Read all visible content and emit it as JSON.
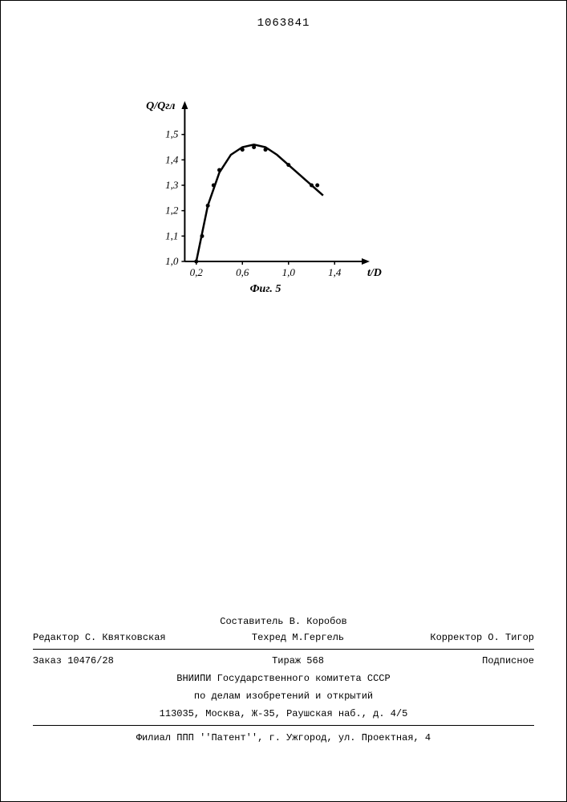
{
  "doc_number": "1063841",
  "chart": {
    "type": "scatter-line",
    "ylabel": "Q/Qгл",
    "xlabel": "t/D",
    "figure_label": "Фиг. 5",
    "yticks": [
      1.0,
      1.1,
      1.2,
      1.3,
      1.4,
      1.5
    ],
    "ytick_labels": [
      "1,0",
      "1,1",
      "1,2",
      "1,3",
      "1,4",
      "1,5"
    ],
    "xticks": [
      0.2,
      0.6,
      1.0,
      1.4
    ],
    "xtick_labels": [
      "0,2",
      "0,6",
      "1,0",
      "1,4"
    ],
    "xlim": [
      0.0,
      1.6
    ],
    "ylim": [
      1.0,
      1.6
    ],
    "points": [
      {
        "x": 0.2,
        "y": 1.0
      },
      {
        "x": 0.25,
        "y": 1.1
      },
      {
        "x": 0.3,
        "y": 1.22
      },
      {
        "x": 0.35,
        "y": 1.3
      },
      {
        "x": 0.4,
        "y": 1.36
      },
      {
        "x": 0.6,
        "y": 1.44
      },
      {
        "x": 0.7,
        "y": 1.45
      },
      {
        "x": 0.8,
        "y": 1.44
      },
      {
        "x": 1.0,
        "y": 1.38
      },
      {
        "x": 1.2,
        "y": 1.3
      },
      {
        "x": 1.25,
        "y": 1.3
      }
    ],
    "curve": [
      {
        "x": 0.2,
        "y": 1.0
      },
      {
        "x": 0.3,
        "y": 1.22
      },
      {
        "x": 0.4,
        "y": 1.35
      },
      {
        "x": 0.5,
        "y": 1.42
      },
      {
        "x": 0.6,
        "y": 1.45
      },
      {
        "x": 0.7,
        "y": 1.46
      },
      {
        "x": 0.8,
        "y": 1.45
      },
      {
        "x": 0.9,
        "y": 1.42
      },
      {
        "x": 1.0,
        "y": 1.38
      },
      {
        "x": 1.1,
        "y": 1.34
      },
      {
        "x": 1.2,
        "y": 1.3
      },
      {
        "x": 1.3,
        "y": 1.26
      }
    ],
    "line_color": "#000000",
    "line_width": 2.5,
    "marker_color": "#000000",
    "marker_radius": 2.5,
    "axis_color": "#000000",
    "axis_width": 2,
    "label_fontsize": 14,
    "tick_fontsize": 13,
    "font_style": "italic"
  },
  "footer": {
    "composer_label": "Составитель",
    "composer_name": "В. Коробов",
    "editor_label": "Редактор",
    "editor_name": "С. Квятковская",
    "tech_editor_label": "Техред",
    "tech_editor_name": "М.Гергель",
    "corrector_label": "Корректор",
    "corrector_name": "О. Тигор",
    "order": "Заказ 10476/28",
    "tirazh": "Тираж 568",
    "subscription": "Подписное",
    "org1": "ВНИИПИ Государственного комитета СССР",
    "org2": "по делам изобретений и открытий",
    "address": "113035, Москва, Ж-35, Раушская наб., д. 4/5",
    "branch": "Филиал ППП ''Патент'', г. Ужгород, ул. Проектная, 4"
  }
}
